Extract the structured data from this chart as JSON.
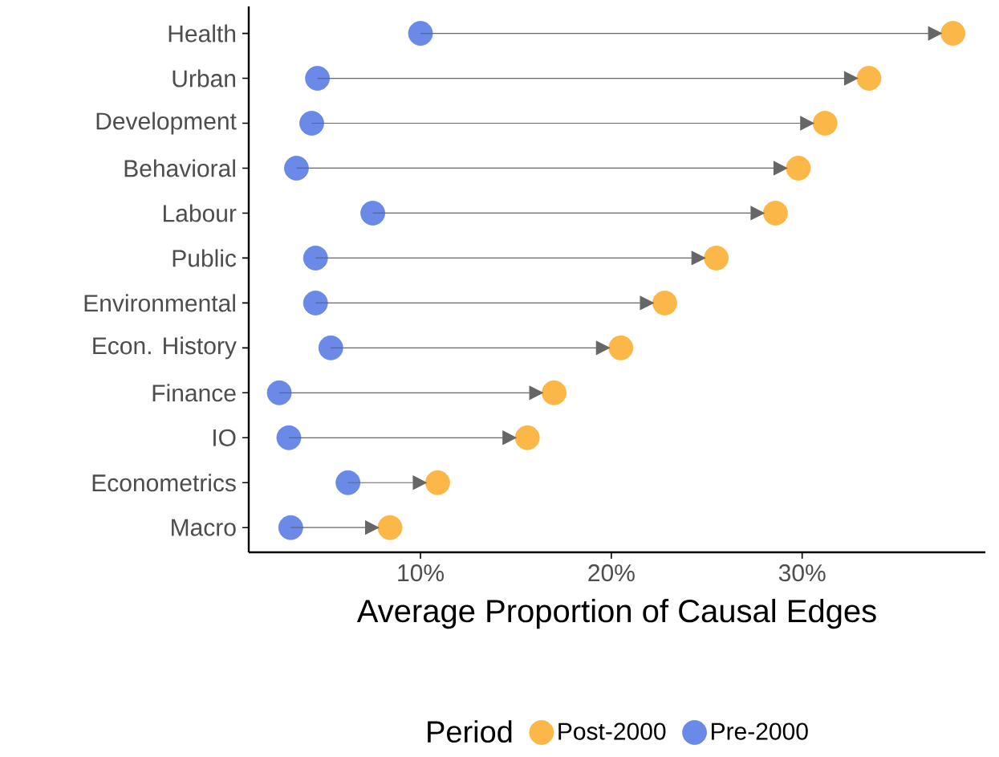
{
  "chart_data": {
    "type": "scatter",
    "orientation": "horizontal",
    "xlabel": "Average Proportion of Causal Edges",
    "legend_title": "Period",
    "legend": "bottom",
    "marker": "circle",
    "grid": false,
    "categories": [
      "Health",
      "Urban",
      "Development",
      "Behavioral",
      "Labour",
      "Public",
      "Environmental",
      "Econ. History",
      "Finance",
      "IO",
      "Econometrics",
      "Macro"
    ],
    "xlim": [
      1,
      39.6
    ],
    "xticks": [
      {
        "value": 10,
        "label": "10%"
      },
      {
        "value": 20,
        "label": "20%"
      },
      {
        "value": 30,
        "label": "30%"
      }
    ],
    "series": [
      {
        "name": "Post-2000",
        "color": "#FBAF33",
        "values": [
          37.9,
          33.5,
          31.2,
          29.8,
          28.6,
          25.5,
          22.8,
          20.5,
          17.0,
          15.6,
          10.9,
          8.4
        ]
      },
      {
        "name": "Pre-2000",
        "color": "#5B7CE3",
        "values": [
          10.0,
          4.6,
          4.3,
          3.5,
          7.5,
          4.5,
          4.5,
          5.3,
          2.6,
          3.1,
          6.2,
          3.2
        ]
      }
    ]
  }
}
